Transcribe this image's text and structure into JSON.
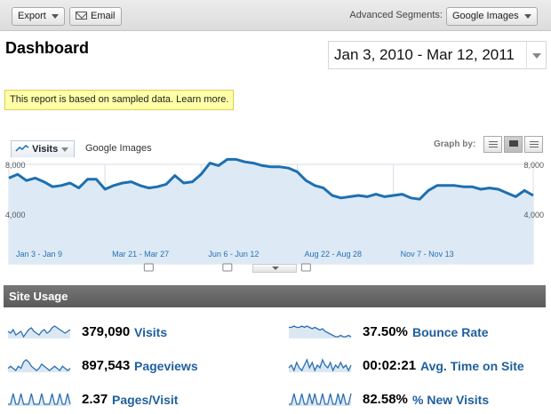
{
  "toolbar": {
    "export_label": "Export",
    "email_label": "Email",
    "segments_label": "Advanced Segments:",
    "segment_value": "Google Images"
  },
  "page_title": "Dashboard",
  "date_range": "Jan 3, 2010 - Mar 12, 2011",
  "notice": "This report is based on sampled data. Learn more.",
  "graph": {
    "metric_tab": "Visits",
    "compare_label": "Google Images",
    "graph_by_label": "Graph by:"
  },
  "chart_data": {
    "type": "area",
    "ylim": [
      0,
      8000
    ],
    "y_ticks_left": [
      "8,000",
      "4,000"
    ],
    "y_ticks_right": [
      "8,000",
      "4,000"
    ],
    "x_labels": [
      "Jan 3 - Jan 9",
      "Mar 21 - Mar 27",
      "Jun 6 - Jun 12",
      "Aug 22 - Aug 28",
      "Nov 7 - Nov 13"
    ],
    "x_label_indices": [
      0,
      11,
      22,
      33,
      44
    ],
    "values": [
      6900,
      7200,
      6700,
      6900,
      6600,
      6200,
      6300,
      6500,
      6100,
      6800,
      6800,
      6000,
      6300,
      6500,
      6600,
      6300,
      6100,
      6200,
      6400,
      7100,
      6500,
      6600,
      7200,
      8100,
      7900,
      8400,
      8400,
      8200,
      8100,
      7900,
      7800,
      7800,
      7700,
      7400,
      6700,
      6300,
      6100,
      5500,
      5300,
      5400,
      5500,
      5400,
      5600,
      5400,
      5500,
      5600,
      5300,
      5200,
      5900,
      6300,
      6300,
      6300,
      6200,
      6200,
      6000,
      6100,
      6000,
      5700,
      5400,
      5900,
      5500
    ],
    "markers": [
      {
        "index": 16
      },
      {
        "index": 25
      },
      {
        "index": 34
      }
    ],
    "colors": {
      "line": "#1e6fb0",
      "fill": "#ddeaf6"
    }
  },
  "site_usage": {
    "title": "Site Usage",
    "metrics": [
      {
        "value": "379,090",
        "label": "Visits",
        "spark": [
          6,
          5,
          7,
          4,
          5,
          6,
          3,
          5,
          7,
          8,
          6,
          5,
          4,
          6,
          7,
          5,
          6,
          8,
          9,
          8,
          7,
          6,
          5,
          6,
          7
        ]
      },
      {
        "value": "897,543",
        "label": "Pageviews",
        "spark": [
          5,
          6,
          5,
          4,
          6,
          5,
          8,
          9,
          8,
          6,
          5,
          4,
          5,
          7,
          6,
          5,
          4,
          5,
          6,
          5,
          4,
          6,
          5,
          4,
          5
        ]
      },
      {
        "value": "2.37",
        "label": "Pages/Visit",
        "spark": [
          5,
          5,
          6,
          5,
          5,
          6,
          5,
          5,
          5,
          6,
          5,
          5,
          5,
          6,
          5,
          5,
          5,
          6,
          5,
          5,
          6,
          5,
          5,
          6,
          5
        ]
      },
      {
        "value": "37.50%",
        "label": "Bounce Rate",
        "spark": [
          8,
          8,
          9,
          8,
          8,
          9,
          8,
          9,
          8,
          7,
          8,
          7,
          6,
          7,
          5,
          4,
          3,
          2,
          1,
          1,
          2,
          1,
          1,
          2,
          1
        ]
      },
      {
        "value": "00:02:21",
        "label": "Avg. Time on Site",
        "spark": [
          5,
          6,
          4,
          7,
          5,
          4,
          6,
          8,
          5,
          7,
          4,
          6,
          5,
          8,
          6,
          5,
          7,
          4,
          6,
          5,
          7,
          5,
          6,
          4,
          6
        ]
      },
      {
        "value": "82.58%",
        "label": "% New Visits",
        "spark": [
          4,
          4,
          5,
          4,
          4,
          5,
          4,
          4,
          5,
          4,
          5,
          4,
          4,
          5,
          4,
          4,
          5,
          4,
          4,
          5,
          4,
          5,
          4,
          4,
          5
        ]
      }
    ]
  }
}
